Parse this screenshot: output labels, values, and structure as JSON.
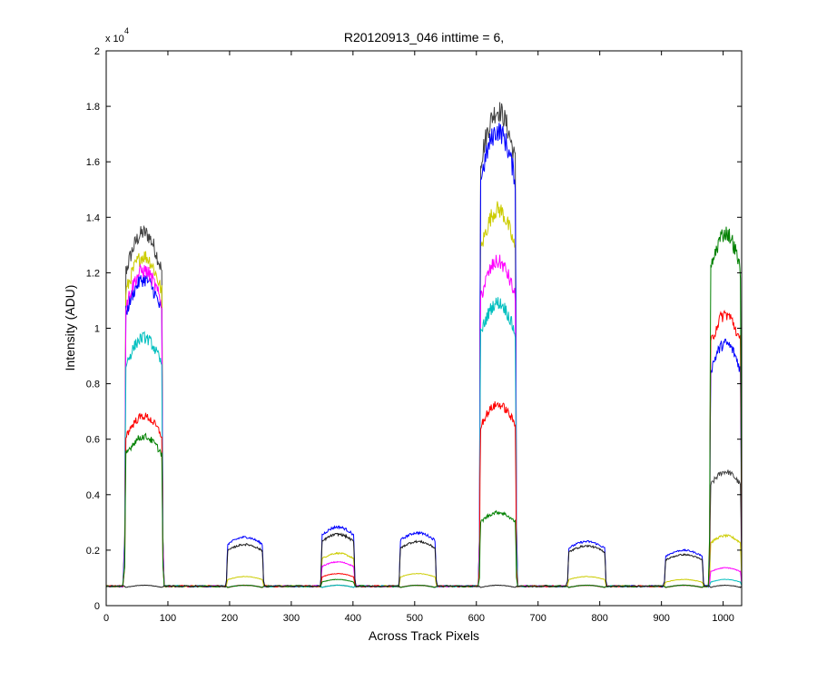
{
  "chart_data": {
    "type": "line",
    "title": "R20120913_046 inttime = 6,",
    "xlabel": "Across Track Pixels",
    "ylabel": "Intensity (ADU)",
    "y_multiplier": "x 10",
    "y_multiplier_exponent": "4",
    "xlim": [
      0,
      1030
    ],
    "ylim": [
      0,
      20000
    ],
    "xticks": [
      0,
      100,
      200,
      300,
      400,
      500,
      600,
      700,
      800,
      900,
      1000
    ],
    "yticks": [
      0,
      2000,
      4000,
      6000,
      8000,
      10000,
      12000,
      14000,
      16000,
      18000,
      20000
    ],
    "ytick_labels": [
      "0",
      "0.2",
      "0.4",
      "0.6",
      "0.8",
      "1",
      "1.2",
      "1.4",
      "1.6",
      "1.8",
      "2"
    ],
    "grid": false,
    "legend": "none",
    "baseline": 700,
    "segments": [
      {
        "x0": 30,
        "x1": 92
      },
      {
        "x0": 195,
        "x1": 255
      },
      {
        "x0": 348,
        "x1": 403
      },
      {
        "x0": 475,
        "x1": 535
      },
      {
        "x0": 605,
        "x1": 665
      },
      {
        "x0": 748,
        "x1": 810
      },
      {
        "x0": 905,
        "x1": 968
      },
      {
        "x0": 978,
        "x1": 1030
      }
    ],
    "series": [
      {
        "color": "#404040",
        "levels": [
          12800,
          700,
          700,
          700,
          17000,
          700,
          700,
          4600
        ]
      },
      {
        "color": "#cccc00",
        "levels": [
          12000,
          1000,
          1800,
          1100,
          13600,
          1000,
          900,
          2400
        ]
      },
      {
        "color": "#0000ff",
        "levels": [
          11200,
          2350,
          2700,
          2500,
          16300,
          2200,
          1900,
          9000
        ]
      },
      {
        "color": "#ff00ff",
        "levels": [
          11500,
          700,
          1500,
          700,
          11800,
          700,
          700,
          1300
        ]
      },
      {
        "color": "#00bfbf",
        "levels": [
          9200,
          700,
          700,
          700,
          10400,
          700,
          700,
          900
        ]
      },
      {
        "color": "#ff0000",
        "levels": [
          6500,
          700,
          1100,
          700,
          6900,
          700,
          700,
          10000
        ]
      },
      {
        "color": "#008000",
        "levels": [
          5800,
          700,
          900,
          700,
          3200,
          700,
          700,
          12800
        ]
      },
      {
        "color": "#1a1a1a",
        "levels": [
          700,
          2100,
          2450,
          2200,
          700,
          2050,
          1750,
          700
        ]
      }
    ]
  }
}
